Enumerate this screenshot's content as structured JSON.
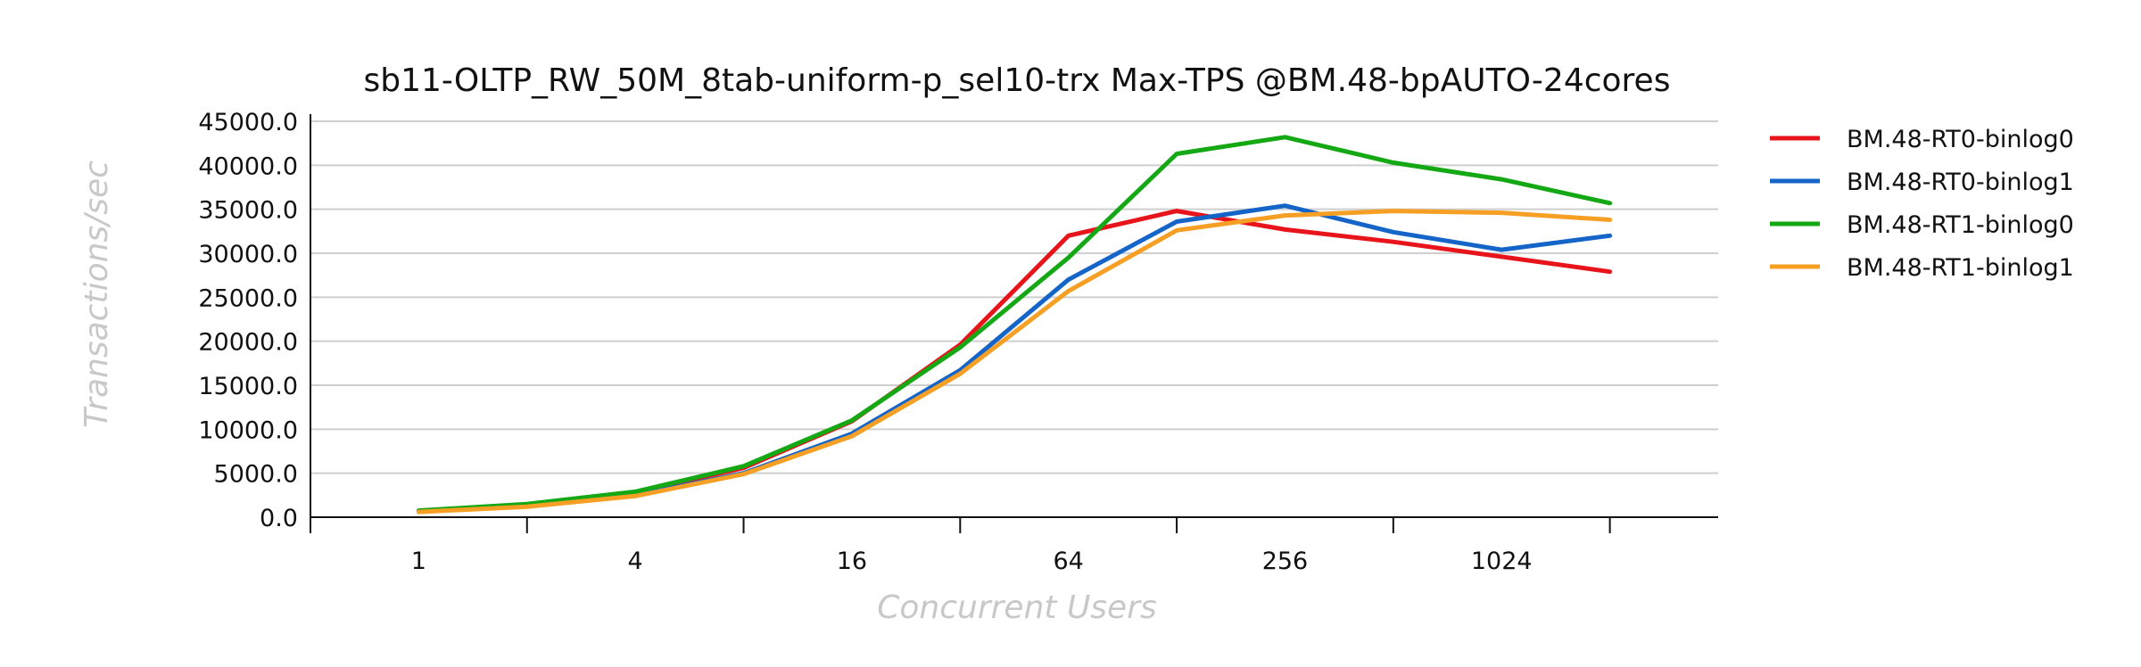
{
  "chart_data": {
    "type": "line",
    "title": "sb11-OLTP_RW_50M_8tab-uniform-p_sel10-trx Max-TPS @BM.48-bpAUTO-24cores",
    "xlabel": "Concurrent Users",
    "ylabel": "Transactions/sec",
    "x_scale": "log2",
    "x": [
      1,
      2,
      4,
      8,
      16,
      32,
      64,
      128,
      256,
      512,
      1024,
      2048
    ],
    "x_tick_labels": [
      "1",
      "4",
      "16",
      "64",
      "256",
      "1024"
    ],
    "x_tick_values": [
      1,
      4,
      16,
      64,
      256,
      1024
    ],
    "xlim": [
      0.5,
      4096
    ],
    "ylim": [
      0,
      45000
    ],
    "y_ticks": [
      "0.0",
      "5000.0",
      "10000.0",
      "15000.0",
      "20000.0",
      "25000.0",
      "30000.0",
      "35000.0",
      "40000.0",
      "45000.0"
    ],
    "grid": true,
    "legend_position": "right",
    "series": [
      {
        "name": "BM.48-RT0-binlog0",
        "color": "#e8141b",
        "values": [
          700,
          1400,
          2800,
          5600,
          10900,
          19600,
          32000,
          34800,
          32700,
          31300,
          29600,
          27900
        ]
      },
      {
        "name": "BM.48-RT0-binlog1",
        "color": "#1565c8",
        "values": [
          650,
          1300,
          2500,
          5000,
          9500,
          16700,
          27000,
          33600,
          35400,
          32400,
          30400,
          32000
        ]
      },
      {
        "name": "BM.48-RT1-binlog0",
        "color": "#15a815",
        "values": [
          750,
          1500,
          2900,
          5800,
          11000,
          19300,
          29500,
          41300,
          43200,
          40300,
          38400,
          35700
        ]
      },
      {
        "name": "BM.48-RT1-binlog1",
        "color": "#f5a025",
        "values": [
          600,
          1200,
          2400,
          4900,
          9200,
          16300,
          25700,
          32600,
          34300,
          34800,
          34600,
          33800
        ]
      }
    ]
  }
}
